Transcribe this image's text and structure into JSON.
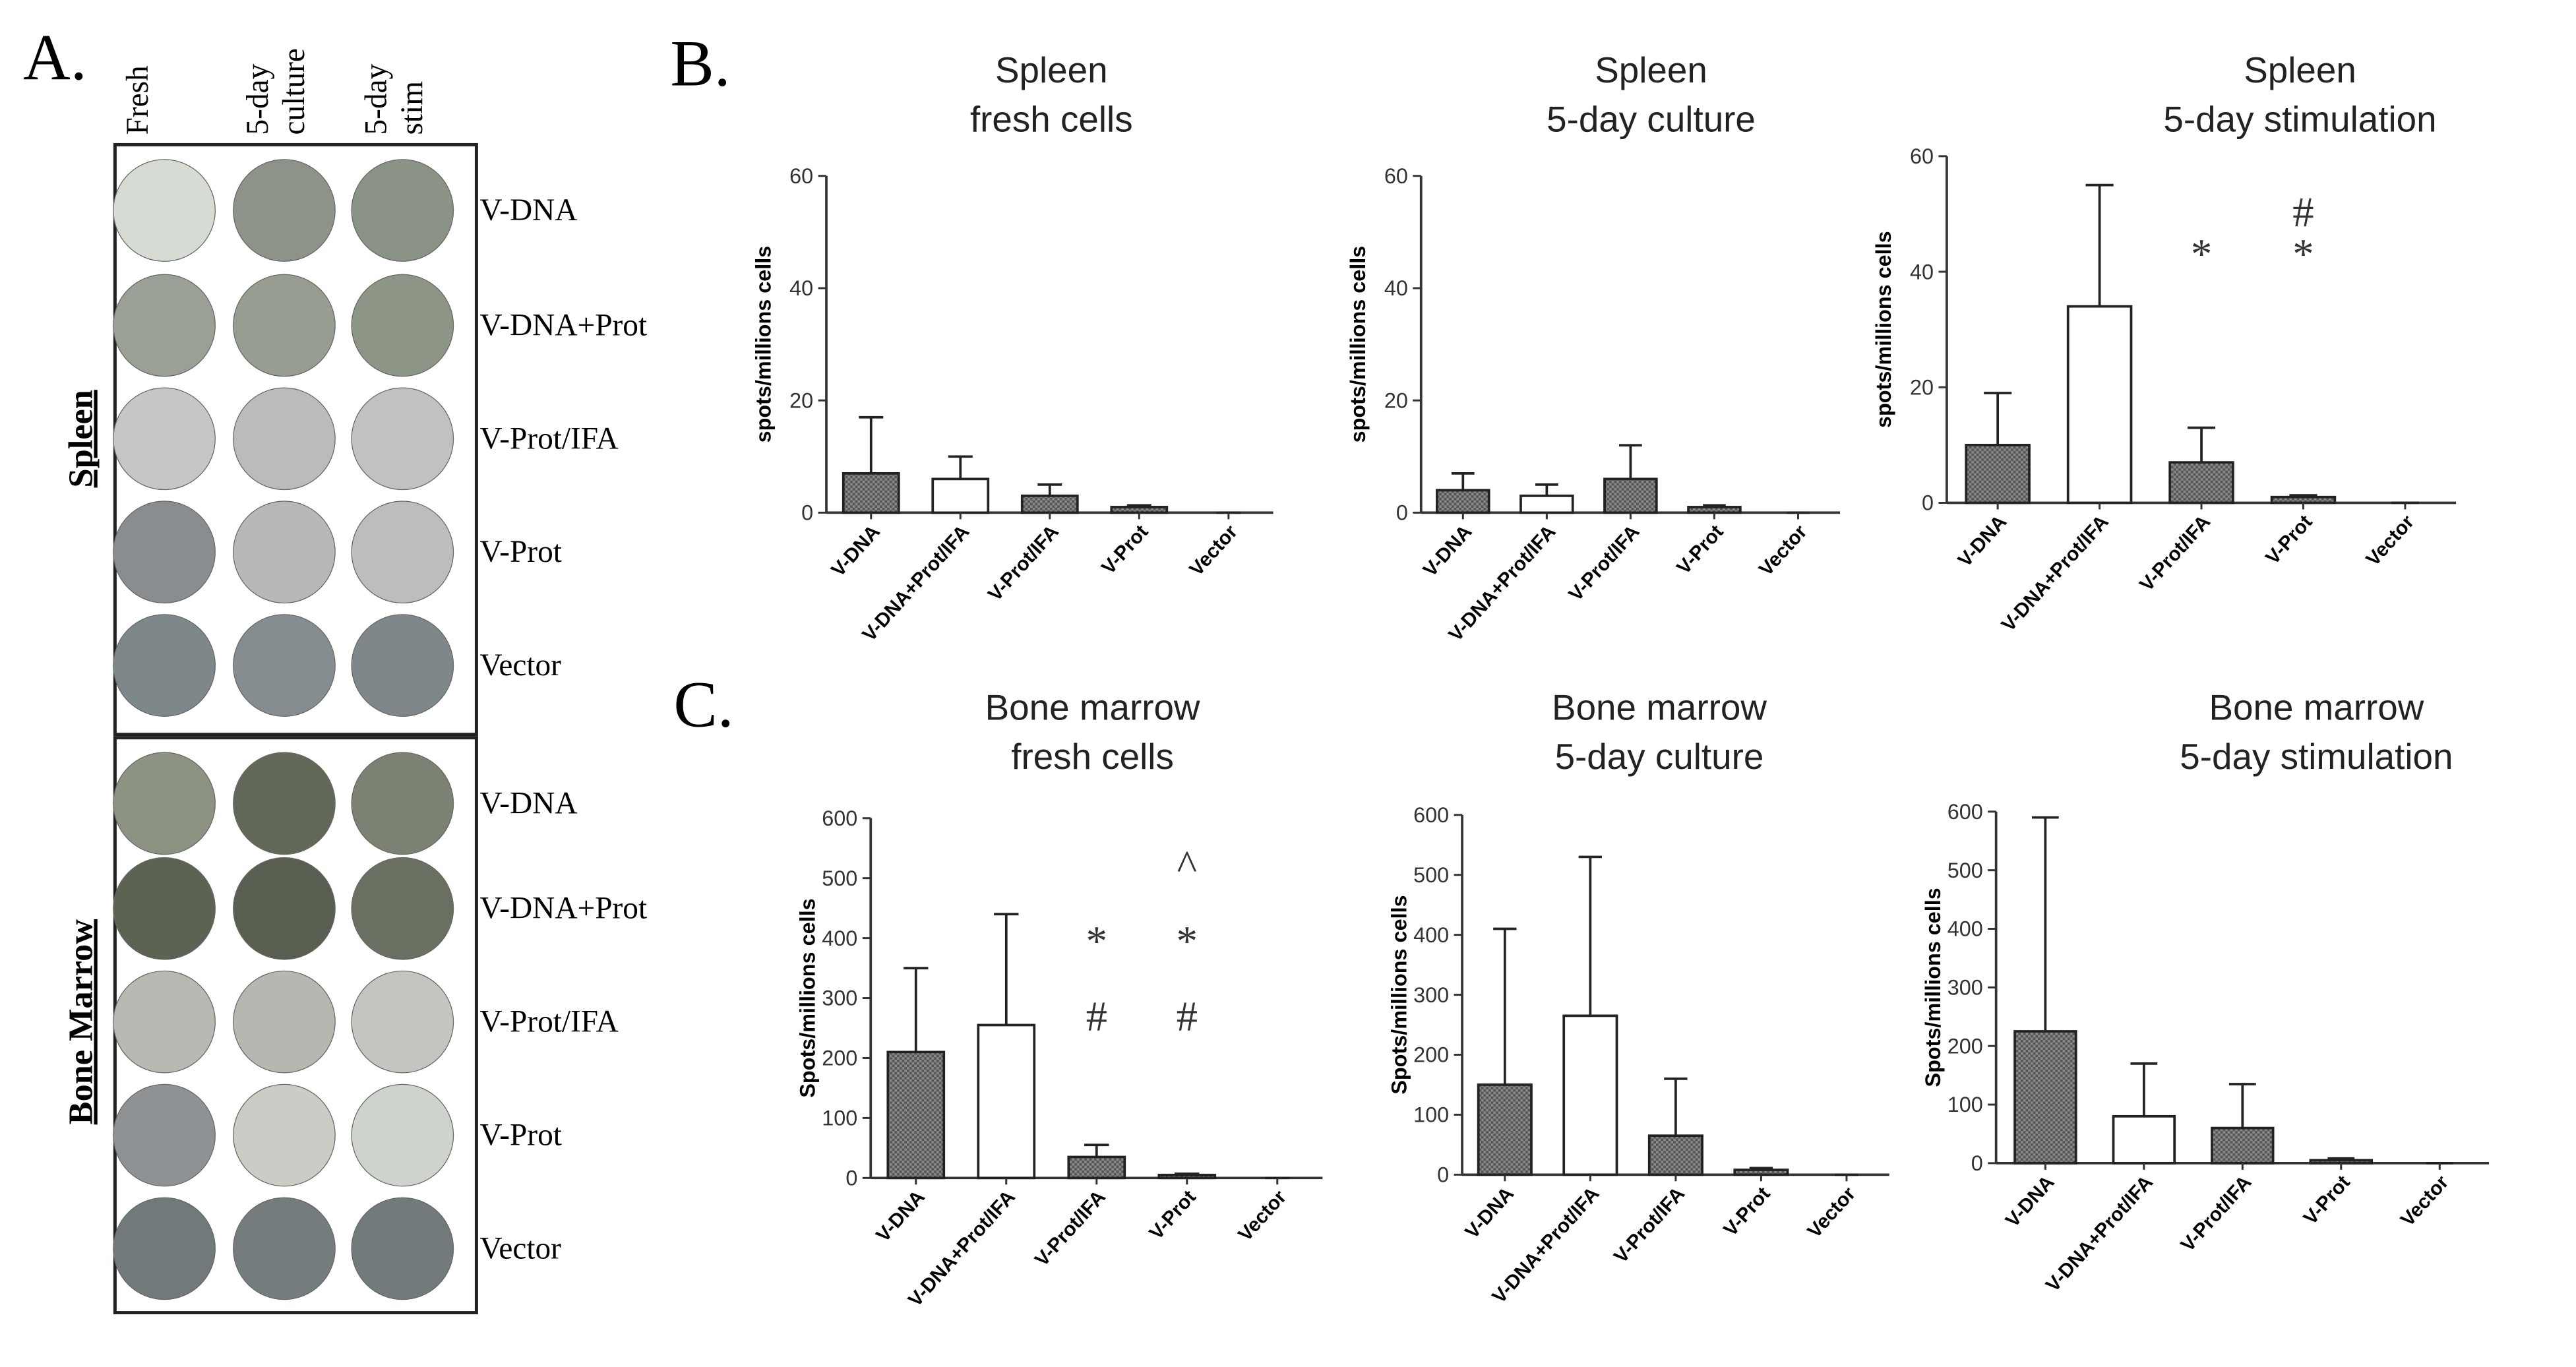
{
  "panel_a": {
    "label": "A.",
    "columns": [
      [
        "Fresh"
      ],
      [
        "5-day",
        "culture"
      ],
      [
        "5-day",
        "stim"
      ]
    ],
    "tissues": [
      {
        "name": "Spleen",
        "rows": [
          "V-DNA",
          "V-DNA+Prot",
          "V-Prot/IFA",
          "V-Prot",
          "Vector"
        ]
      },
      {
        "name": "Bone Marrow",
        "rows": [
          "V-DNA",
          "V-DNA+Prot",
          "V-Prot/IFA",
          "V-Prot",
          "Vector"
        ]
      }
    ]
  },
  "panel_labels": {
    "b": "B.",
    "c": "C."
  },
  "chart_data": [
    {
      "type": "bar",
      "title_lines": [
        "Spleen",
        "fresh cells"
      ],
      "ylabel": "spots/millions cells",
      "categories": [
        "V-DNA",
        "V-DNA+Prot/IFA",
        "V-Prot/IFA",
        "V-Prot",
        "Vector"
      ],
      "values": [
        7,
        6,
        3,
        1,
        0
      ],
      "errors": [
        10,
        4,
        2,
        0.3,
        0
      ],
      "colors": [
        "#707070",
        "#ffffff",
        "#707070",
        "#707070",
        "#707070"
      ],
      "ylim": [
        0,
        60
      ],
      "yticks": [
        0,
        20,
        40,
        60
      ],
      "annotations": []
    },
    {
      "type": "bar",
      "title_lines": [
        "Spleen",
        "5-day culture"
      ],
      "ylabel": "spots/millions cells",
      "categories": [
        "V-DNA",
        "V-DNA+Prot/IFA",
        "V-Prot/IFA",
        "V-Prot",
        "Vector"
      ],
      "values": [
        4,
        3,
        6,
        1,
        0
      ],
      "errors": [
        3,
        2,
        6,
        0.3,
        0
      ],
      "colors": [
        "#707070",
        "#ffffff",
        "#707070",
        "#707070",
        "#707070"
      ],
      "ylim": [
        0,
        60
      ],
      "yticks": [
        0,
        20,
        40,
        60
      ],
      "annotations": []
    },
    {
      "type": "bar",
      "title_lines": [
        "Spleen",
        "5-day stimulation"
      ],
      "ylabel": "spots/millions cells",
      "categories": [
        "V-DNA",
        "V-DNA+Prot/IFA",
        "V-Prot/IFA",
        "V-Prot",
        "Vector"
      ],
      "values": [
        10,
        34,
        7,
        1,
        0
      ],
      "errors": [
        9,
        21,
        6,
        0.3,
        0
      ],
      "colors": [
        "#707070",
        "#ffffff",
        "#707070",
        "#707070",
        "#707070"
      ],
      "ylim": [
        0,
        60
      ],
      "yticks": [
        0,
        20,
        40,
        60
      ],
      "annotations": [
        {
          "category": "V-Prot/IFA",
          "marks": [
            "*"
          ]
        },
        {
          "category": "V-Prot",
          "marks": [
            "#",
            "*"
          ]
        }
      ]
    },
    {
      "type": "bar",
      "title_lines": [
        "Bone marrow",
        "fresh cells"
      ],
      "ylabel": "Spots/millions cells",
      "categories": [
        "V-DNA",
        "V-DNA+Prot/IFA",
        "V-Prot/IFA",
        "V-Prot",
        "Vector"
      ],
      "values": [
        210,
        255,
        35,
        5,
        0
      ],
      "errors": [
        140,
        185,
        20,
        2,
        0
      ],
      "colors": [
        "#707070",
        "#ffffff",
        "#707070",
        "#707070",
        "#707070"
      ],
      "ylim": [
        0,
        600
      ],
      "yticks": [
        0,
        100,
        200,
        300,
        400,
        500,
        600
      ],
      "annotations": [
        {
          "category": "V-Prot/IFA",
          "marks": [
            "*",
            "#"
          ]
        },
        {
          "category": "V-Prot",
          "marks": [
            "^",
            "*",
            "#"
          ]
        }
      ]
    },
    {
      "type": "bar",
      "title_lines": [
        "Bone marrow",
        "5-day culture"
      ],
      "ylabel": "Spots/millions cells",
      "categories": [
        "V-DNA",
        "V-DNA+Prot/IFA",
        "V-Prot/IFA",
        "V-Prot",
        "Vector"
      ],
      "values": [
        150,
        265,
        65,
        8,
        0
      ],
      "errors": [
        260,
        265,
        95,
        3,
        0
      ],
      "colors": [
        "#707070",
        "#ffffff",
        "#707070",
        "#707070",
        "#707070"
      ],
      "ylim": [
        0,
        600
      ],
      "yticks": [
        0,
        100,
        200,
        300,
        400,
        500,
        600
      ],
      "annotations": []
    },
    {
      "type": "bar",
      "title_lines": [
        "Bone marrow",
        "5-day stimulation"
      ],
      "ylabel": "Spots/millions cells",
      "categories": [
        "V-DNA",
        "V-DNA+Prot/IFA",
        "V-Prot/IFA",
        "V-Prot",
        "Vector"
      ],
      "values": [
        225,
        80,
        60,
        5,
        0
      ],
      "errors": [
        365,
        90,
        75,
        3,
        0
      ],
      "colors": [
        "#707070",
        "#ffffff",
        "#707070",
        "#707070",
        "#707070"
      ],
      "ylim": [
        0,
        600
      ],
      "yticks": [
        0,
        100,
        200,
        300,
        400,
        500,
        600
      ],
      "annotations": []
    }
  ]
}
